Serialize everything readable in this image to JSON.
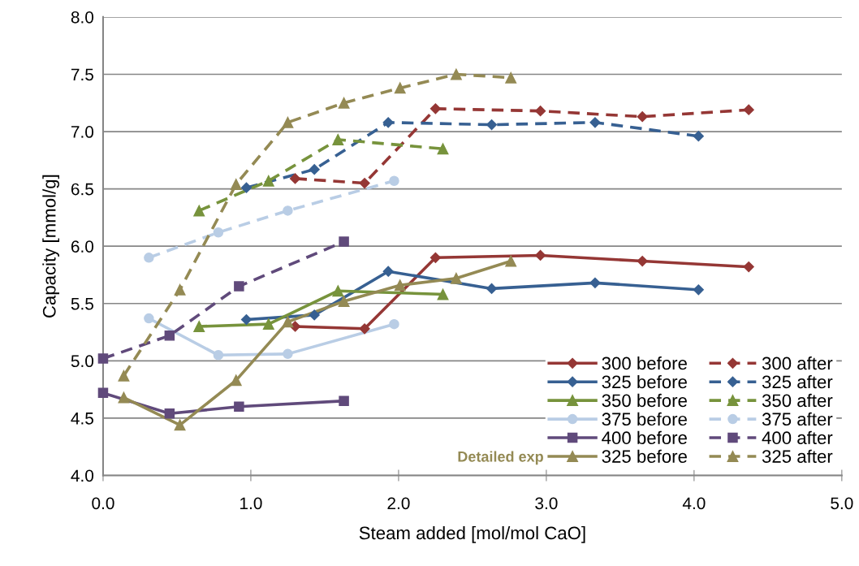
{
  "chart_data": {
    "type": "line",
    "xlabel": "Steam added [mol/mol CaO]",
    "ylabel": "Capacity [mmol/g]",
    "xlim": [
      0,
      5
    ],
    "ylim": [
      4,
      8
    ],
    "xticks": [
      {
        "value": 0,
        "label": "0.0"
      },
      {
        "value": 1,
        "label": "1.0"
      },
      {
        "value": 2,
        "label": "2.0"
      },
      {
        "value": 3,
        "label": "3.0"
      },
      {
        "value": 4,
        "label": "4.0"
      },
      {
        "value": 5,
        "label": "5.0"
      }
    ],
    "yticks": [
      {
        "value": 4,
        "label": "4.0"
      },
      {
        "value": 4.5,
        "label": "4.5"
      },
      {
        "value": 5,
        "label": "5.0"
      },
      {
        "value": 5.5,
        "label": "5.5"
      },
      {
        "value": 6,
        "label": "6.0"
      },
      {
        "value": 6.5,
        "label": "6.5"
      },
      {
        "value": 7,
        "label": "7.0"
      },
      {
        "value": 7.5,
        "label": "7.5"
      },
      {
        "value": 8,
        "label": "8.0"
      }
    ],
    "grid": "y",
    "legend": "bottom right",
    "annotations": [
      "Detailed exp"
    ],
    "series": [
      {
        "name": "300 before",
        "color": "#953735",
        "marker": "diamond",
        "line_style": "solid",
        "x": [
          1.3,
          1.77,
          2.25,
          2.96,
          3.65,
          4.37
        ],
        "values": [
          5.3,
          5.28,
          5.9,
          5.92,
          5.87,
          5.82
        ]
      },
      {
        "name": "300 after",
        "color": "#953735",
        "marker": "diamond",
        "line_style": "dashed",
        "x": [
          1.3,
          1.77,
          2.25,
          2.96,
          3.65,
          4.37
        ],
        "values": [
          6.59,
          6.55,
          7.2,
          7.18,
          7.13,
          7.19
        ]
      },
      {
        "name": "325 before",
        "color": "#376092",
        "marker": "diamond",
        "line_style": "solid",
        "x": [
          0.97,
          1.43,
          1.93,
          2.63,
          3.33,
          4.03
        ],
        "values": [
          5.36,
          5.4,
          5.78,
          5.63,
          5.68,
          5.62
        ]
      },
      {
        "name": "325 after",
        "color": "#376092",
        "marker": "diamond",
        "line_style": "dashed",
        "x": [
          0.97,
          1.43,
          1.93,
          2.63,
          3.33,
          4.03
        ],
        "values": [
          6.51,
          6.67,
          7.08,
          7.06,
          7.08,
          6.96
        ]
      },
      {
        "name": "350 before",
        "color": "#77933c",
        "marker": "triangle",
        "line_style": "solid",
        "x": [
          0.65,
          1.12,
          1.59,
          2.3
        ],
        "values": [
          5.3,
          5.32,
          5.61,
          5.58
        ]
      },
      {
        "name": "350 after",
        "color": "#77933c",
        "marker": "triangle",
        "line_style": "dashed",
        "x": [
          0.65,
          1.12,
          1.59,
          2.3
        ],
        "values": [
          6.31,
          6.57,
          6.93,
          6.85
        ]
      },
      {
        "name": "375 before",
        "color": "#b9cde5",
        "marker": "circle",
        "line_style": "solid",
        "x": [
          0.31,
          0.78,
          1.25,
          1.97
        ],
        "values": [
          5.37,
          5.05,
          5.06,
          5.32
        ]
      },
      {
        "name": "375 after",
        "color": "#b9cde5",
        "marker": "circle",
        "line_style": "dashed",
        "x": [
          0.31,
          0.78,
          1.25,
          1.97
        ],
        "values": [
          5.9,
          6.12,
          6.31,
          6.57
        ]
      },
      {
        "name": "400 before",
        "color": "#604a7b",
        "marker": "square",
        "line_style": "solid",
        "x": [
          0,
          0.45,
          0.92,
          1.63
        ],
        "values": [
          4.72,
          4.54,
          4.6,
          4.65
        ]
      },
      {
        "name": "400 after",
        "color": "#604a7b",
        "marker": "square",
        "line_style": "dashed",
        "x": [
          0,
          0.45,
          0.92,
          1.63
        ],
        "values": [
          5.02,
          5.22,
          5.65,
          6.04
        ]
      },
      {
        "name": "325 before",
        "color": "#948a54",
        "marker": "triangle",
        "line_style": "solid",
        "x": [
          0.14,
          0.52,
          0.9,
          1.25,
          1.63,
          2.01,
          2.39,
          2.76
        ],
        "values": [
          4.68,
          4.44,
          4.83,
          5.34,
          5.52,
          5.66,
          5.72,
          5.87
        ]
      },
      {
        "name": "325 after",
        "color": "#948a54",
        "marker": "triangle",
        "line_style": "dashed",
        "x": [
          0.14,
          0.52,
          0.9,
          1.25,
          1.63,
          2.01,
          2.39,
          2.76
        ],
        "values": [
          4.87,
          5.62,
          6.54,
          7.08,
          7.25,
          7.38,
          7.5,
          7.47
        ]
      }
    ]
  }
}
